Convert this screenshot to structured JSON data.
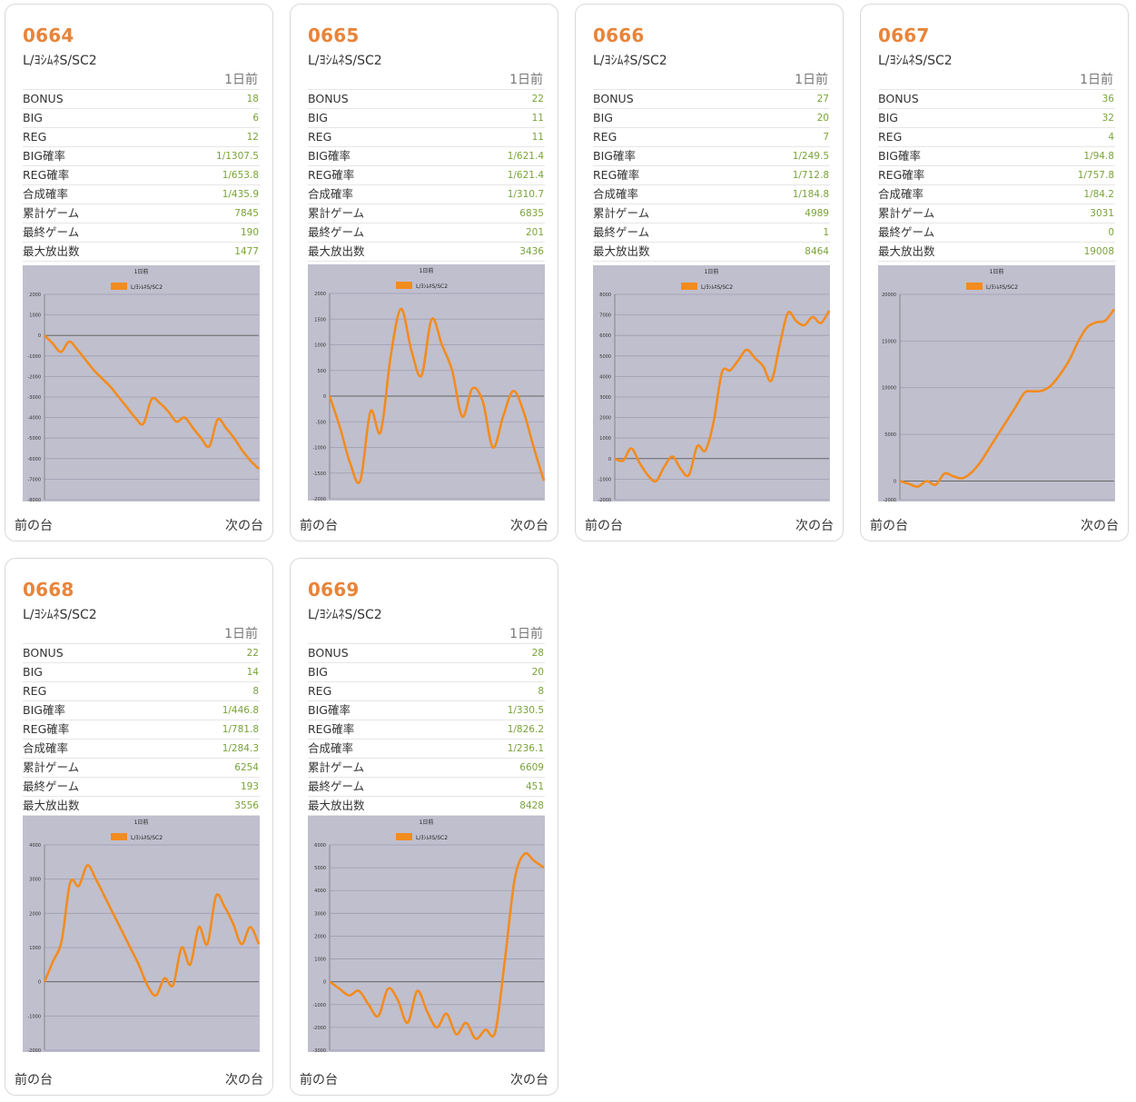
{
  "ui": {
    "period_label": "1日前",
    "prev_label": "前の台",
    "next_label": "次の台",
    "stat_labels": [
      "BONUS",
      "BIG",
      "REG",
      "BIG確率",
      "REG確率",
      "合成確率",
      "累計ゲーム",
      "最終ゲーム",
      "最大放出数"
    ],
    "line_color": "#f28c1e",
    "chart_bg": "#c0bfce",
    "id_color": "#e8843a",
    "value_color": "#7aa33a"
  },
  "cards": [
    {
      "id": "0664",
      "machine": "L/ﾖｼﾑﾈS/SC2",
      "stats": [
        "18",
        "6",
        "12",
        "1/1307.5",
        "1/653.8",
        "1/435.9",
        "7845",
        "190",
        "1477"
      ]
    },
    {
      "id": "0665",
      "machine": "L/ﾖｼﾑﾈS/SC2",
      "stats": [
        "22",
        "11",
        "11",
        "1/621.4",
        "1/621.4",
        "1/310.7",
        "6835",
        "201",
        "3436"
      ]
    },
    {
      "id": "0666",
      "machine": "L/ﾖｼﾑﾈS/SC2",
      "stats": [
        "27",
        "20",
        "7",
        "1/249.5",
        "1/712.8",
        "1/184.8",
        "4989",
        "1",
        "8464"
      ]
    },
    {
      "id": "0667",
      "machine": "L/ﾖｼﾑﾈS/SC2",
      "stats": [
        "36",
        "32",
        "4",
        "1/94.8",
        "1/757.8",
        "1/84.2",
        "3031",
        "0",
        "19008"
      ]
    },
    {
      "id": "0668",
      "machine": "L/ﾖｼﾑﾈS/SC2",
      "stats": [
        "22",
        "14",
        "8",
        "1/446.8",
        "1/781.8",
        "1/284.3",
        "6254",
        "193",
        "3556"
      ]
    },
    {
      "id": "0669",
      "machine": "L/ﾖｼﾑﾈS/SC2",
      "stats": [
        "28",
        "20",
        "8",
        "1/330.5",
        "1/826.2",
        "1/236.1",
        "6609",
        "451",
        "8428"
      ]
    }
  ],
  "chart_data": [
    {
      "type": "line",
      "title": "1日前",
      "legend": "L/ﾖｼﾑﾈS/SC2",
      "ylim": [
        -8000,
        2000
      ],
      "yticks": [
        2000,
        1000,
        0,
        -1000,
        -2000,
        -3000,
        -4000,
        -5000,
        -6000,
        -7000,
        -8000
      ],
      "values": [
        0,
        -400,
        -800,
        -300,
        -700,
        -1200,
        -1700,
        -2100,
        -2500,
        -3000,
        -3500,
        -4000,
        -4300,
        -3100,
        -3300,
        -3700,
        -4200,
        -4000,
        -4500,
        -5000,
        -5400,
        -4100,
        -4500,
        -5000,
        -5600,
        -6100,
        -6500
      ]
    },
    {
      "type": "line",
      "title": "1日前",
      "legend": "L/ﾖｼﾑﾈS/SC2",
      "ylim": [
        -2000,
        2000
      ],
      "yticks": [
        2000,
        1500,
        1000,
        500,
        0,
        -500,
        -1000,
        -1500,
        -2000
      ],
      "values": [
        0,
        -600,
        -1300,
        -1650,
        -300,
        -700,
        800,
        1700,
        900,
        400,
        1500,
        1000,
        500,
        -400,
        150,
        -100,
        -1000,
        -400,
        100,
        -300,
        -1000,
        -1650
      ]
    },
    {
      "type": "line",
      "title": "1日前",
      "legend": "L/ﾖｼﾑﾈS/SC2",
      "ylim": [
        -2000,
        8000
      ],
      "yticks": [
        8000,
        7000,
        6000,
        5000,
        4000,
        3000,
        2000,
        1000,
        0,
        -1000,
        -2000
      ],
      "values": [
        0,
        -100,
        500,
        -200,
        -800,
        -1100,
        -400,
        100,
        -500,
        -800,
        600,
        400,
        1800,
        4200,
        4300,
        4800,
        5300,
        4900,
        4500,
        3800,
        5500,
        7100,
        6700,
        6500,
        6900,
        6600,
        7200
      ]
    },
    {
      "type": "line",
      "title": "1日前",
      "legend": "L/ﾖｼﾑﾈS/SC2",
      "ylim": [
        -2000,
        20000
      ],
      "yticks": [
        20000,
        15000,
        10000,
        5000,
        0,
        -2000
      ],
      "values": [
        0,
        -300,
        -600,
        0,
        -400,
        800,
        500,
        300,
        900,
        2000,
        3500,
        5000,
        6500,
        8000,
        9500,
        9600,
        9700,
        10300,
        11500,
        13000,
        15000,
        16500,
        17000,
        17200,
        18400
      ]
    },
    {
      "type": "line",
      "title": "1日前",
      "legend": "L/ﾖｼﾑﾈS/SC2",
      "ylim": [
        -2000,
        4000
      ],
      "yticks": [
        4000,
        3000,
        2000,
        1000,
        0,
        -1000,
        -2000
      ],
      "values": [
        0,
        600,
        1200,
        2900,
        2800,
        3400,
        3000,
        2500,
        2000,
        1500,
        1000,
        500,
        -100,
        -400,
        100,
        -100,
        1000,
        500,
        1600,
        1100,
        2500,
        2200,
        1700,
        1100,
        1600,
        1100
      ]
    },
    {
      "type": "line",
      "title": "1日前",
      "legend": "L/ﾖｼﾑﾈS/SC2",
      "ylim": [
        -3000,
        6000
      ],
      "yticks": [
        6000,
        5000,
        4000,
        3000,
        2000,
        1000,
        0,
        -1000,
        -2000,
        -3000
      ],
      "values": [
        0,
        -300,
        -600,
        -400,
        -1000,
        -1500,
        -300,
        -800,
        -1800,
        -400,
        -1300,
        -2000,
        -1400,
        -2300,
        -1800,
        -2500,
        -2100,
        -2200,
        1000,
        4500,
        5600,
        5300,
        5000
      ]
    }
  ]
}
